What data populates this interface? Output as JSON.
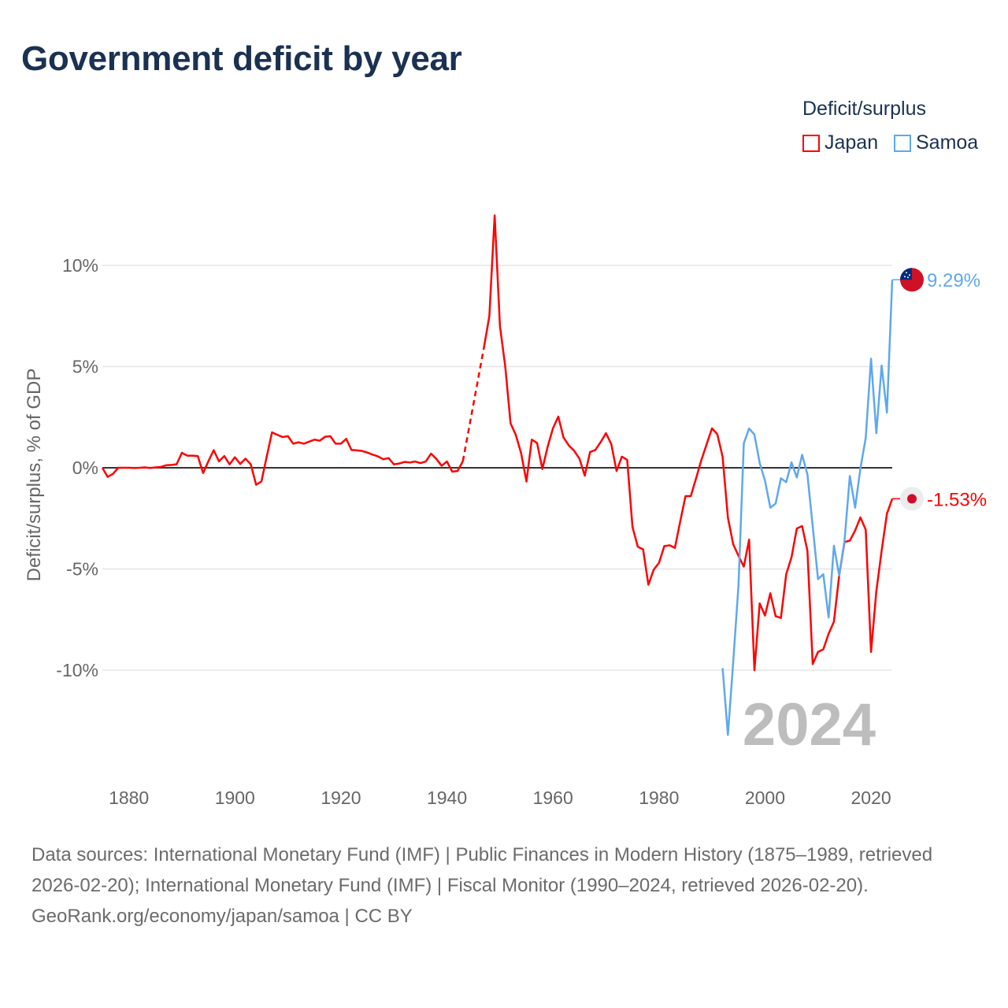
{
  "title": "Government deficit by year",
  "legend": {
    "title": "Deficit/surplus",
    "items": [
      {
        "name": "Japan",
        "color": "#ff0000"
      },
      {
        "name": "Samoa",
        "color": "#5ea8ee"
      }
    ]
  },
  "chart_data": {
    "type": "line",
    "title": "Government deficit by year",
    "xlabel": "",
    "ylabel": "Deficit/surplus, % of GDP",
    "xlim": [
      1875,
      2024
    ],
    "ylim": [
      -13.5,
      12.6
    ],
    "xticks": [
      1880,
      1900,
      1920,
      1940,
      1960,
      1980,
      2000,
      2020
    ],
    "yticks": [
      {
        "value": 10,
        "label": "10%"
      },
      {
        "value": 5,
        "label": "5%"
      },
      {
        "value": 0,
        "label": "0%"
      },
      {
        "value": -5,
        "label": "-5%"
      },
      {
        "value": -10,
        "label": "-10%"
      }
    ],
    "grid": true,
    "legend_position": "top-right",
    "year_watermark": "2024",
    "series": [
      {
        "name": "Japan",
        "color": "#ff0000",
        "end_label": "-1.53%",
        "start_year": 1875,
        "values": [
          0,
          -0.45,
          -0.3,
          0,
          0,
          0,
          -0.01,
          0,
          0.02,
          -0.01,
          0.02,
          0.04,
          0.12,
          0.14,
          0.17,
          0.74,
          0.6,
          0.6,
          0.58,
          -0.26,
          0.32,
          0.87,
          0.32,
          0.58,
          0.17,
          0.52,
          0.19,
          0.45,
          0.17,
          -0.84,
          -0.68,
          0.55,
          1.75,
          1.63,
          1.52,
          1.56,
          1.19,
          1.26,
          1.19,
          1.29,
          1.39,
          1.34,
          1.53,
          1.56,
          1.19,
          1.19,
          1.43,
          0.88,
          0.86,
          0.83,
          0.75,
          0.65,
          0.56,
          0.42,
          0.48,
          0.17,
          0.21,
          0.29,
          0.26,
          0.31,
          0.23,
          0.31,
          0.7,
          0.44,
          0.1,
          0.31,
          -0.19,
          -0.16,
          0.32,
          null,
          null,
          null,
          5.97,
          7.5,
          12.47,
          7.0,
          5.0,
          2.2,
          1.62,
          0.71,
          -0.68,
          1.39,
          1.23,
          -0.06,
          1.04,
          1.95,
          2.53,
          1.49,
          1.1,
          0.84,
          0.45,
          -0.39,
          0.78,
          0.88,
          1.27,
          1.71,
          1.17,
          -0.16,
          0.55,
          0.39,
          -2.92,
          -3.9,
          -4.03,
          -5.78,
          -5.04,
          -4.7,
          -3.87,
          -3.83,
          -3.96,
          -2.66,
          -1.4,
          -1.4,
          -0.52,
          0.39,
          1.17,
          1.95,
          1.66,
          0.55,
          -2.46,
          -3.78,
          -4.35,
          -4.88,
          -3.55,
          -10.0,
          -6.7,
          -7.3,
          -6.2,
          -7.33,
          -7.42,
          -5.26,
          -4.42,
          -3.0,
          -2.88,
          -4.1,
          -9.7,
          -9.1,
          -8.97,
          -8.2,
          -7.6,
          -5.3,
          -3.67,
          -3.6,
          -3.1,
          -2.45,
          -3.06,
          -9.1,
          -6.1,
          -4.1,
          -2.27,
          -1.53
        ]
      },
      {
        "name": "Samoa",
        "color": "#5ea8ee",
        "end_label": "9.29%",
        "start_year": 1992,
        "values": [
          -9.9,
          -13.2,
          -9.6,
          -5.8,
          1.21,
          1.94,
          1.64,
          0.24,
          -0.64,
          -1.97,
          -1.77,
          -0.52,
          -0.71,
          0.27,
          -0.48,
          0.64,
          -0.33,
          -2.9,
          -5.5,
          -5.26,
          -7.4,
          -3.85,
          -5.33,
          -3.6,
          -0.41,
          -1.97,
          -0.03,
          1.48,
          5.39,
          1.71,
          5.05,
          2.73,
          9.29
        ]
      }
    ]
  },
  "footer": {
    "sources": "Data sources: International Monetary Fund (IMF) | Public Finances in Modern History (1875–1989, retrieved 2026-02-20); International Monetary Fund (IMF) | Fiscal Monitor (1990–2024, retrieved 2026-02-20).",
    "credit": "GeoRank.org/economy/japan/samoa | CC BY"
  }
}
